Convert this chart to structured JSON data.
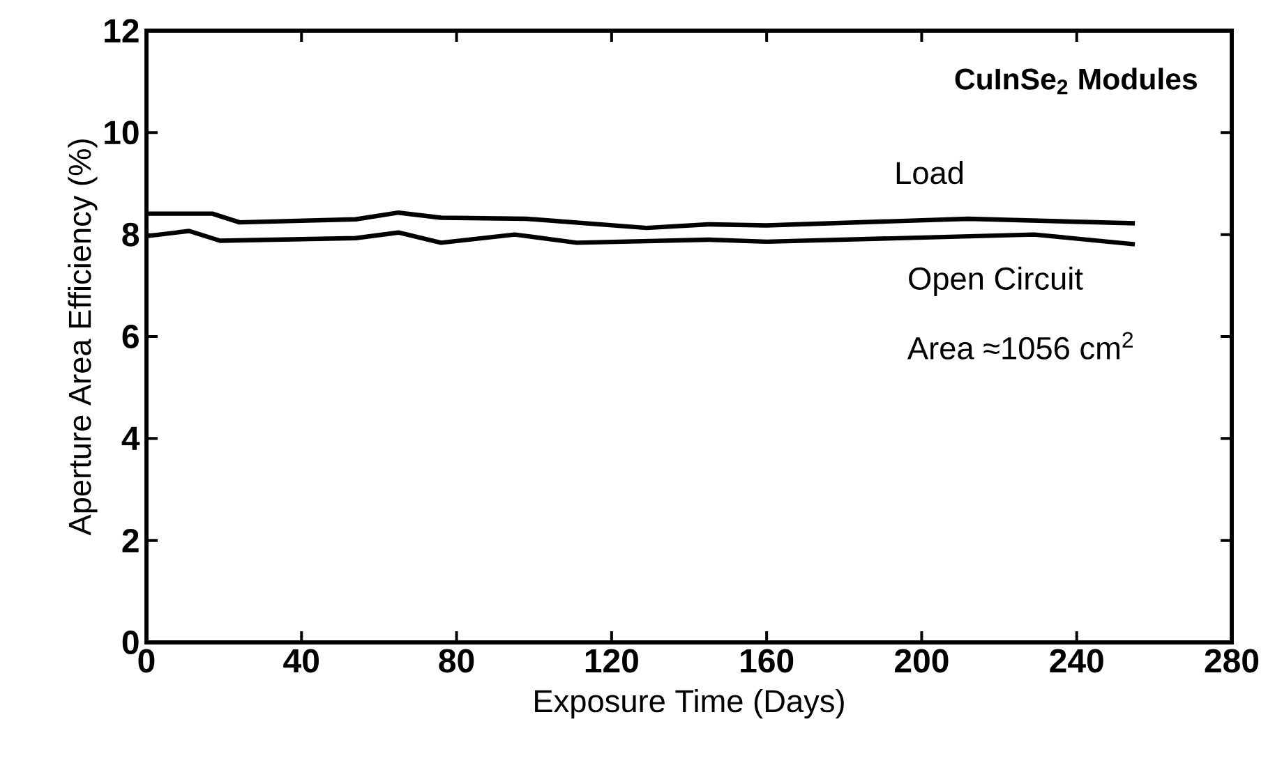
{
  "chart_data": {
    "type": "line",
    "title": "**CuInSe$_{2}$ Modules**",
    "xlabel": "Exposure Time (Days)",
    "ylabel": "Aperture Area Efficiency (%)",
    "annotations": [
      "Area ≈1056 cm$^{2}$"
    ],
    "xlim": [
      0,
      280
    ],
    "xticks": [
      0,
      40,
      80,
      120,
      160,
      200,
      240,
      280
    ],
    "ylim": [
      0,
      12
    ],
    "yticks": [
      0,
      2,
      4,
      6,
      8,
      10,
      12
    ],
    "grid": false,
    "legend": false,
    "marker": "none",
    "line_style": "solid",
    "series": [
      {
        "name": "Load",
        "color": "#000000",
        "x": [
          0,
          17,
          24,
          54,
          65,
          76,
          98,
          129,
          145,
          160,
          212,
          255
        ],
        "values": [
          8.41,
          8.41,
          8.24,
          8.3,
          8.43,
          8.33,
          8.31,
          8.13,
          8.2,
          8.18,
          8.31,
          8.22
        ]
      },
      {
        "name": "Open Circuit",
        "color": "#000000",
        "x": [
          0,
          11,
          19,
          54,
          65,
          76,
          95,
          111,
          145,
          160,
          229,
          255
        ],
        "values": [
          7.97,
          8.07,
          7.88,
          7.93,
          8.04,
          7.84,
          8.0,
          7.84,
          7.9,
          7.86,
          8.0,
          7.81
        ]
      }
    ]
  }
}
